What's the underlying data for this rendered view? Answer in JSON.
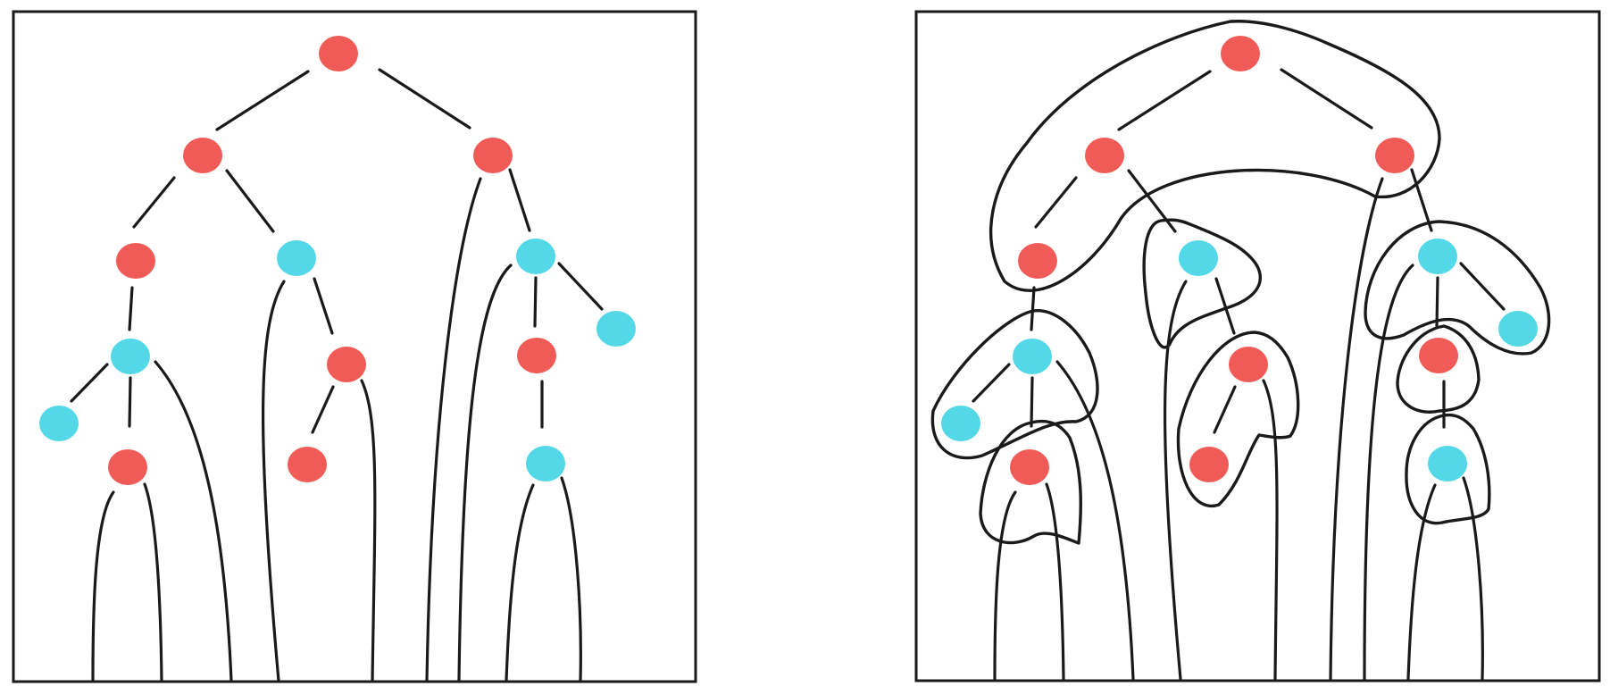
{
  "colors": {
    "red": "#f05b57",
    "cyan": "#52d8e6",
    "ink": "#1a1a1a",
    "background": "#ffffff"
  },
  "panels": [
    {
      "name": "left-tree-panel",
      "nodes": [
        {
          "id": "A",
          "color": "red"
        },
        {
          "id": "B",
          "color": "red"
        },
        {
          "id": "C",
          "color": "red"
        },
        {
          "id": "D",
          "color": "red"
        },
        {
          "id": "E",
          "color": "cyan"
        },
        {
          "id": "F",
          "color": "cyan"
        },
        {
          "id": "G",
          "color": "cyan"
        },
        {
          "id": "H",
          "color": "cyan"
        },
        {
          "id": "I",
          "color": "red"
        },
        {
          "id": "J",
          "color": "red"
        },
        {
          "id": "K",
          "color": "cyan"
        },
        {
          "id": "L",
          "color": "red"
        },
        {
          "id": "M",
          "color": "red"
        },
        {
          "id": "N",
          "color": "cyan"
        }
      ],
      "edges": [
        [
          "A",
          "B"
        ],
        [
          "A",
          "C"
        ],
        [
          "B",
          "D"
        ],
        [
          "B",
          "E"
        ],
        [
          "C",
          "F"
        ],
        [
          "C",
          "G"
        ],
        [
          "D",
          "H"
        ],
        [
          "H",
          "K"
        ],
        [
          "H",
          "L"
        ],
        [
          "E",
          "I"
        ],
        [
          "I",
          "M"
        ],
        [
          "F",
          "J"
        ],
        [
          "J",
          "N"
        ]
      ]
    },
    {
      "name": "right-tree-panel",
      "nodes": [
        {
          "id": "A",
          "color": "red"
        },
        {
          "id": "B",
          "color": "red"
        },
        {
          "id": "C",
          "color": "red"
        },
        {
          "id": "D",
          "color": "red"
        },
        {
          "id": "E",
          "color": "cyan"
        },
        {
          "id": "F",
          "color": "cyan"
        },
        {
          "id": "G",
          "color": "cyan"
        },
        {
          "id": "H",
          "color": "cyan"
        },
        {
          "id": "I",
          "color": "red"
        },
        {
          "id": "J",
          "color": "red"
        },
        {
          "id": "K",
          "color": "cyan"
        },
        {
          "id": "L",
          "color": "red"
        },
        {
          "id": "M",
          "color": "red"
        },
        {
          "id": "N",
          "color": "cyan"
        }
      ],
      "edges": [
        [
          "A",
          "B"
        ],
        [
          "A",
          "C"
        ],
        [
          "B",
          "D"
        ],
        [
          "B",
          "E"
        ],
        [
          "C",
          "F"
        ],
        [
          "C",
          "G"
        ],
        [
          "D",
          "H"
        ],
        [
          "H",
          "K"
        ],
        [
          "H",
          "L"
        ],
        [
          "E",
          "I"
        ],
        [
          "I",
          "M"
        ],
        [
          "F",
          "J"
        ],
        [
          "J",
          "N"
        ]
      ],
      "regions": 8
    }
  ]
}
